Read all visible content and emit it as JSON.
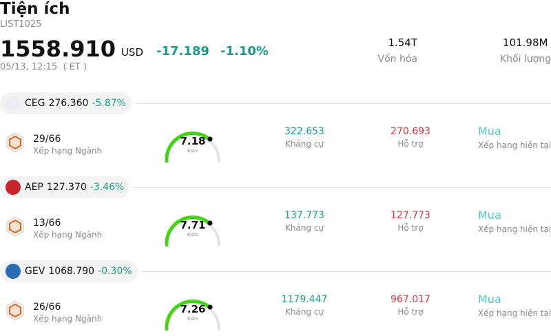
{
  "header": {
    "title": "Tiện ích",
    "list": "LIST1025",
    "price": "1558.910",
    "currency": "USD",
    "change": "-17.189",
    "change_pct": "-1.10%",
    "time": "05/13, 12:15  ( ET )",
    "stats": [
      {
        "value": "1.54T",
        "label": "Vốn hóa"
      },
      {
        "value": "101.98M",
        "label": "Khối lượng"
      }
    ]
  },
  "stocks": [
    {
      "ticker": "CEG",
      "price": "276.360",
      "change_pct": "-5.87%",
      "rank": "29/66",
      "rank_label": "Xếp hạng Ngành",
      "score": "7.18",
      "score_label": "Điểm",
      "resistance": "322.653",
      "resistance_label": "Kháng cự",
      "support": "270.693",
      "support_label": "Hỗ trợ",
      "rating": "Mua",
      "rating_label": "Xếp hạng hiện tại"
    },
    {
      "ticker": "AEP",
      "price": "127.370",
      "change_pct": "-3.46%",
      "rank": "13/66",
      "rank_label": "Xếp hạng Ngành",
      "score": "7.71",
      "score_label": "Điểm",
      "resistance": "137.773",
      "resistance_label": "Kháng cự",
      "support": "127.773",
      "support_label": "Hỗ trợ",
      "rating": "Mua",
      "rating_label": "Xếp hạng hiện tại"
    },
    {
      "ticker": "GEV",
      "price": "1068.790",
      "change_pct": "-0.30%",
      "rank": "26/66",
      "rank_label": "Xếp hạng Ngành",
      "score": "7.26",
      "score_label": "Điểm",
      "resistance": "1179.447",
      "resistance_label": "Kháng cự",
      "support": "967.017",
      "support_label": "Hỗ trợ",
      "rating": "Mua",
      "rating_label": "Xếp hạng hiện tại"
    }
  ]
}
